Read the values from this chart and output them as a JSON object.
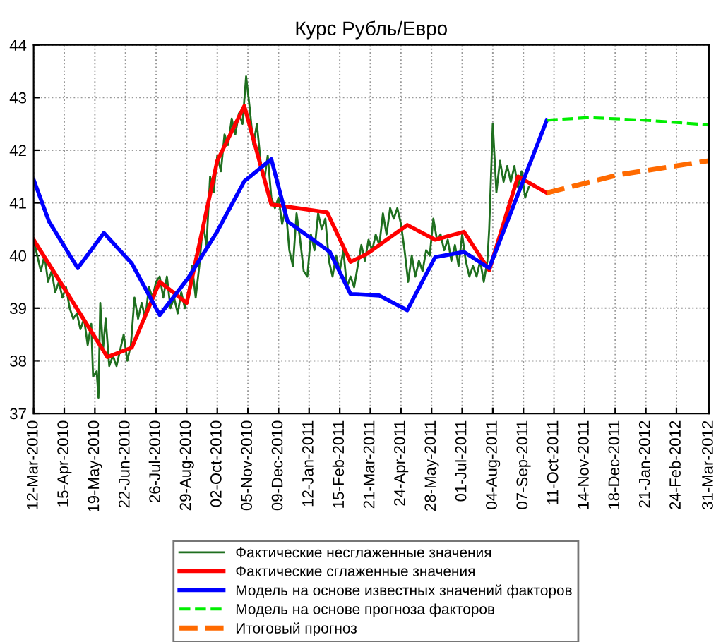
{
  "chart_data": {
    "type": "line",
    "title": "Курс Рубль/Евро",
    "xlim": [
      "2010-03-12",
      "2012-03-31"
    ],
    "ylim": [
      37,
      44
    ],
    "yticks": [
      37,
      38,
      39,
      40,
      41,
      42,
      43,
      44
    ],
    "xticks": [
      {
        "value": "2010-03-12",
        "label": "12-Mar-2010"
      },
      {
        "value": "2010-04-15",
        "label": "15-Apr-2010"
      },
      {
        "value": "2010-05-19",
        "label": "19-May-2010"
      },
      {
        "value": "2010-06-22",
        "label": "22-Jun-2010"
      },
      {
        "value": "2010-07-26",
        "label": "26-Jul-2010"
      },
      {
        "value": "2010-08-29",
        "label": "29-Aug-2010"
      },
      {
        "value": "2010-10-02",
        "label": "02-Oct-2010"
      },
      {
        "value": "2010-11-05",
        "label": "05-Nov-2010"
      },
      {
        "value": "2010-12-09",
        "label": "09-Dec-2010"
      },
      {
        "value": "2011-01-12",
        "label": "12-Jan-2011"
      },
      {
        "value": "2011-02-15",
        "label": "15-Feb-2011"
      },
      {
        "value": "2011-03-21",
        "label": "21-Mar-2011"
      },
      {
        "value": "2011-04-24",
        "label": "24-Apr-2011"
      },
      {
        "value": "2011-05-28",
        "label": "28-May-2011"
      },
      {
        "value": "2011-07-01",
        "label": "01-Jul-2011"
      },
      {
        "value": "2011-08-04",
        "label": "04-Aug-2011"
      },
      {
        "value": "2011-09-07",
        "label": "07-Sep-2011"
      },
      {
        "value": "2011-10-11",
        "label": "11-Oct-2011"
      },
      {
        "value": "2011-11-14",
        "label": "14-Nov-2011"
      },
      {
        "value": "2011-12-18",
        "label": "18-Dec-2011"
      },
      {
        "value": "2012-01-21",
        "label": "21-Jan-2012"
      },
      {
        "value": "2012-02-24",
        "label": "24-Feb-2012"
      },
      {
        "value": "2012-03-31",
        "label": "31-Mar-2012"
      }
    ],
    "grid": true,
    "legend": "bottom",
    "marker": "none",
    "series": [
      {
        "name": "Фактические несглаженные значения",
        "color": "#1f6f1f",
        "line_style": "solid",
        "x": [
          "2010-03-12",
          "2010-03-16",
          "2010-03-20",
          "2010-03-24",
          "2010-03-28",
          "2010-04-01",
          "2010-04-05",
          "2010-04-09",
          "2010-04-13",
          "2010-04-17",
          "2010-04-21",
          "2010-04-25",
          "2010-04-29",
          "2010-05-03",
          "2010-05-07",
          "2010-05-11",
          "2010-05-15",
          "2010-05-17",
          "2010-05-21",
          "2010-05-23",
          "2010-05-25",
          "2010-05-28",
          "2010-05-31",
          "2010-06-04",
          "2010-06-08",
          "2010-06-12",
          "2010-06-16",
          "2010-06-20",
          "2010-06-24",
          "2010-06-28",
          "2010-07-02",
          "2010-07-06",
          "2010-07-10",
          "2010-07-14",
          "2010-07-18",
          "2010-07-22",
          "2010-07-26",
          "2010-07-30",
          "2010-08-03",
          "2010-08-07",
          "2010-08-11",
          "2010-08-15",
          "2010-08-19",
          "2010-08-23",
          "2010-08-27",
          "2010-08-31",
          "2010-09-04",
          "2010-09-08",
          "2010-09-12",
          "2010-09-16",
          "2010-09-20",
          "2010-09-24",
          "2010-09-28",
          "2010-10-02",
          "2010-10-06",
          "2010-10-10",
          "2010-10-14",
          "2010-10-18",
          "2010-10-22",
          "2010-10-26",
          "2010-10-30",
          "2010-11-03",
          "2010-11-07",
          "2010-11-11",
          "2010-11-15",
          "2010-11-19",
          "2010-11-23",
          "2010-11-27",
          "2010-12-01",
          "2010-12-05",
          "2010-12-09",
          "2010-12-13",
          "2010-12-17",
          "2010-12-21",
          "2010-12-25",
          "2010-12-29",
          "2011-01-02",
          "2011-01-06",
          "2011-01-10",
          "2011-01-14",
          "2011-01-18",
          "2011-01-22",
          "2011-01-26",
          "2011-01-30",
          "2011-02-03",
          "2011-02-07",
          "2011-02-11",
          "2011-02-15",
          "2011-02-19",
          "2011-02-23",
          "2011-02-27",
          "2011-03-03",
          "2011-03-07",
          "2011-03-11",
          "2011-03-15",
          "2011-03-19",
          "2011-03-23",
          "2011-03-27",
          "2011-03-31",
          "2011-04-04",
          "2011-04-08",
          "2011-04-12",
          "2011-04-16",
          "2011-04-20",
          "2011-04-24",
          "2011-04-28",
          "2011-05-02",
          "2011-05-06",
          "2011-05-10",
          "2011-05-14",
          "2011-05-18",
          "2011-05-22",
          "2011-05-26",
          "2011-05-30",
          "2011-06-03",
          "2011-06-07",
          "2011-06-11",
          "2011-06-15",
          "2011-06-19",
          "2011-06-23",
          "2011-06-27",
          "2011-07-01",
          "2011-07-05",
          "2011-07-09",
          "2011-07-13",
          "2011-07-17",
          "2011-07-21",
          "2011-07-25",
          "2011-07-29",
          "2011-07-31",
          "2011-08-04",
          "2011-08-08",
          "2011-08-12",
          "2011-08-16",
          "2011-08-20",
          "2011-08-24",
          "2011-08-28",
          "2011-09-01",
          "2011-09-05",
          "2011-09-09",
          "2011-09-13"
        ],
        "values": [
          40.3,
          40.0,
          39.7,
          40.0,
          39.5,
          39.7,
          39.3,
          39.5,
          39.2,
          39.4,
          39.0,
          38.8,
          38.9,
          38.6,
          38.8,
          38.3,
          38.7,
          37.7,
          37.8,
          37.3,
          39.1,
          38.2,
          38.8,
          37.9,
          38.1,
          37.9,
          38.2,
          38.5,
          38.0,
          38.3,
          39.2,
          38.8,
          39.1,
          38.8,
          39.4,
          39.2,
          39.5,
          39.6,
          39.2,
          39.6,
          39.0,
          39.2,
          38.9,
          39.3,
          39.0,
          39.3,
          39.8,
          39.2,
          39.8,
          40.6,
          40.2,
          41.5,
          41.2,
          41.9,
          41.6,
          42.3,
          42.1,
          42.6,
          42.3,
          42.7,
          42.5,
          43.4,
          42.8,
          42.1,
          42.5,
          41.8,
          41.4,
          41.9,
          41.1,
          40.9,
          41.1,
          40.6,
          40.9,
          40.1,
          39.8,
          40.8,
          40.3,
          39.7,
          39.6,
          40.4,
          40.1,
          40.8,
          40.5,
          40.7,
          39.9,
          39.6,
          40.0,
          39.7,
          40.1,
          39.4,
          39.6,
          39.4,
          39.8,
          40.2,
          39.9,
          40.3,
          40.1,
          40.4,
          40.2,
          40.8,
          40.4,
          40.9,
          40.7,
          40.9,
          40.6,
          40.1,
          39.5,
          40.0,
          39.6,
          39.9,
          39.7,
          40.1,
          40.0,
          40.7,
          40.3,
          40.4,
          40.1,
          40.3,
          39.9,
          40.2,
          39.8,
          40.4,
          39.9,
          39.6,
          39.8,
          39.6,
          39.9,
          39.5,
          39.9,
          40.5,
          42.5,
          41.2,
          41.8,
          41.4,
          41.7,
          41.4,
          41.7,
          41.3,
          41.6,
          41.1,
          41.3
        ]
      },
      {
        "name": "Фактические сглаженные значения",
        "color": "#ff0000",
        "line_style": "solid",
        "x": [
          "2010-03-12",
          "2010-06-02",
          "2010-06-29",
          "2010-07-30",
          "2010-08-29",
          "2010-10-02",
          "2010-11-01",
          "2010-12-01",
          "2011-02-01",
          "2011-02-27",
          "2011-03-17",
          "2011-05-01",
          "2011-06-01",
          "2011-07-03",
          "2011-07-31",
          "2011-09-01",
          "2011-10-03"
        ],
        "values": [
          40.3,
          38.07,
          38.25,
          39.5,
          39.1,
          41.8,
          42.84,
          40.97,
          40.82,
          39.88,
          40.03,
          40.58,
          40.3,
          40.45,
          39.72,
          41.5,
          41.19
        ]
      },
      {
        "name": "Модель на основе известных значений факторов",
        "color": "#0000ff",
        "line_style": "solid",
        "x": [
          "2010-03-12",
          "2010-03-29",
          "2010-04-30",
          "2010-05-29",
          "2010-06-29",
          "2010-07-30",
          "2010-08-31",
          "2010-10-01",
          "2010-11-01",
          "2010-12-01",
          "2010-12-19",
          "2011-02-04",
          "2011-02-27",
          "2011-03-31",
          "2011-05-01",
          "2011-06-01",
          "2011-07-03",
          "2011-07-31",
          "2011-10-03"
        ],
        "values": [
          41.44,
          40.65,
          39.76,
          40.43,
          39.85,
          38.87,
          39.58,
          40.43,
          41.41,
          41.83,
          40.65,
          40.07,
          39.27,
          39.24,
          38.96,
          39.97,
          40.07,
          39.76,
          42.57
        ]
      },
      {
        "name": "Модель на основе прогноза факторов",
        "color": "#00ee00",
        "line_style": "dashed",
        "x": [
          "2011-10-03",
          "2011-11-19",
          "2012-01-21",
          "2012-03-31"
        ],
        "values": [
          42.57,
          42.62,
          42.57,
          42.48
        ]
      },
      {
        "name": "Итоговый прогноз",
        "color": "#ff6a00",
        "line_style": "dashed",
        "x": [
          "2011-10-03",
          "2011-12-21",
          "2012-03-31"
        ],
        "values": [
          41.19,
          41.53,
          41.8
        ]
      }
    ]
  }
}
